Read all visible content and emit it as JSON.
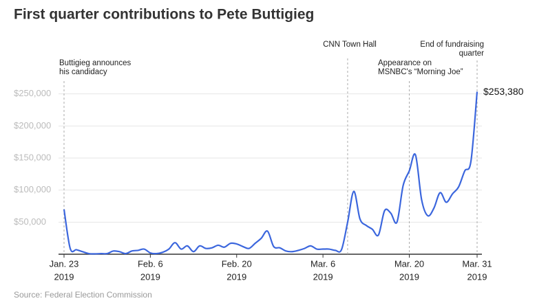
{
  "chart_data": {
    "type": "line",
    "title": "First quarter contributions to Pete Buttigieg",
    "source": "Source: Federal Election Commission",
    "x": [
      "2019-01-23",
      "2019-01-24",
      "2019-01-25",
      "2019-01-26",
      "2019-01-27",
      "2019-01-28",
      "2019-01-29",
      "2019-01-30",
      "2019-01-31",
      "2019-02-01",
      "2019-02-02",
      "2019-02-03",
      "2019-02-04",
      "2019-02-05",
      "2019-02-06",
      "2019-02-07",
      "2019-02-08",
      "2019-02-09",
      "2019-02-10",
      "2019-02-11",
      "2019-02-12",
      "2019-02-13",
      "2019-02-14",
      "2019-02-15",
      "2019-02-16",
      "2019-02-17",
      "2019-02-18",
      "2019-02-19",
      "2019-02-20",
      "2019-02-21",
      "2019-02-22",
      "2019-02-23",
      "2019-02-24",
      "2019-02-25",
      "2019-02-26",
      "2019-02-27",
      "2019-02-28",
      "2019-03-01",
      "2019-03-02",
      "2019-03-03",
      "2019-03-04",
      "2019-03-05",
      "2019-03-06",
      "2019-03-07",
      "2019-03-08",
      "2019-03-09",
      "2019-03-10",
      "2019-03-11",
      "2019-03-12",
      "2019-03-13",
      "2019-03-14",
      "2019-03-15",
      "2019-03-16",
      "2019-03-17",
      "2019-03-18",
      "2019-03-19",
      "2019-03-20",
      "2019-03-21",
      "2019-03-22",
      "2019-03-23",
      "2019-03-24",
      "2019-03-25",
      "2019-03-26",
      "2019-03-27",
      "2019-03-28",
      "2019-03-29",
      "2019-03-30",
      "2019-03-31"
    ],
    "series": [
      {
        "name": "Contributions",
        "color": "#3b66dd",
        "values": [
          70000,
          9000,
          7000,
          4000,
          1000,
          500,
          1000,
          1000,
          5000,
          4000,
          1000,
          5000,
          6000,
          8000,
          2000,
          1000,
          3000,
          8000,
          18000,
          8000,
          13000,
          4000,
          13000,
          9000,
          10000,
          14000,
          11000,
          17000,
          16000,
          12000,
          9000,
          17000,
          25000,
          36000,
          12000,
          10000,
          5000,
          4000,
          6000,
          9000,
          13000,
          8000,
          8000,
          8000,
          6000,
          7000,
          50000,
          98000,
          55000,
          45000,
          39000,
          30000,
          68000,
          64000,
          50000,
          107000,
          130000,
          155000,
          85000,
          60000,
          72000,
          96000,
          81000,
          94000,
          105000,
          130000,
          145000,
          253380
        ],
        "value_labels": [
          null,
          null,
          null,
          null,
          null,
          null,
          null,
          null,
          null,
          null,
          null,
          null,
          null,
          null,
          null,
          null,
          null,
          null,
          null,
          null,
          null,
          null,
          null,
          null,
          null,
          null,
          null,
          null,
          null,
          null,
          null,
          null,
          null,
          null,
          null,
          null,
          null,
          null,
          null,
          null,
          null,
          null,
          null,
          null,
          null,
          null,
          null,
          null,
          null,
          null,
          null,
          null,
          null,
          null,
          null,
          null,
          null,
          null,
          null,
          null,
          null,
          null,
          null,
          null,
          null,
          null,
          null,
          "$253,380"
        ]
      }
    ],
    "xlim": [
      "2019-01-23",
      "2019-03-31"
    ],
    "xticks": [
      {
        "value": "2019-01-23",
        "label": [
          "Jan. 23",
          "2019"
        ]
      },
      {
        "value": "2019-02-06",
        "label": [
          "Feb. 6",
          "2019"
        ]
      },
      {
        "value": "2019-02-20",
        "label": [
          "Feb. 20",
          "2019"
        ]
      },
      {
        "value": "2019-03-06",
        "label": [
          "Mar. 6",
          "2019"
        ]
      },
      {
        "value": "2019-03-20",
        "label": [
          "Mar. 20",
          "2019"
        ]
      },
      {
        "value": "2019-03-31",
        "label": [
          "Mar. 31",
          "2019"
        ]
      }
    ],
    "ylim": [
      0,
      270000
    ],
    "yticks": [
      0,
      {
        "value": 50000,
        "label": "$50,000"
      },
      {
        "value": 100000,
        "label": "$100,000"
      },
      {
        "value": 150000,
        "label": "$150,000"
      },
      {
        "value": 200000,
        "label": "$200,000"
      },
      {
        "value": 250000,
        "label": "$250,000"
      }
    ],
    "grid": true,
    "annotations": [
      {
        "x": "2019-01-23",
        "text": [
          "Buttigieg announces",
          "his candidacy"
        ]
      },
      {
        "x": "2019-03-10",
        "text": [
          "CNN Town Hall"
        ]
      },
      {
        "x": "2019-03-20",
        "text": [
          "Appearance on",
          "MSNBC's “Morning Joe”"
        ]
      },
      {
        "x": "2019-03-31",
        "text": [
          "End of fundraising",
          "quarter"
        ]
      }
    ]
  }
}
